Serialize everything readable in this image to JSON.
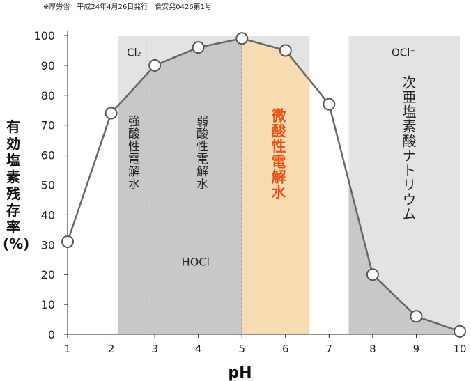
{
  "source_note": "※厚労省　平成24年4月26日発行　食安発0426第1号",
  "chart_data": {
    "type": "line",
    "ylabel_chars": [
      "有",
      "効",
      "塩",
      "素",
      "残",
      "存",
      "率",
      "(%)"
    ],
    "ylabel": "有効塩素残存率(%)",
    "xlabel": "pH",
    "xlim": [
      1,
      10
    ],
    "ylim": [
      0,
      100
    ],
    "x_ticks": [
      "1",
      "2",
      "3",
      "4",
      "5",
      "6",
      "7",
      "8",
      "9",
      "10"
    ],
    "y_ticks": [
      "0",
      "10",
      "20",
      "30",
      "40",
      "50",
      "60",
      "70",
      "80",
      "90",
      "100"
    ],
    "series": [
      {
        "x": [
          1,
          2,
          3,
          4,
          5,
          6,
          7,
          8,
          9,
          10
        ],
        "y": [
          31,
          74,
          90,
          96,
          99,
          95,
          77,
          20,
          6,
          1
        ]
      }
    ],
    "regions": [
      {
        "from": 2.15,
        "to": 6.55,
        "label": "Cl₂",
        "color": "#e3e3e3"
      },
      {
        "from": 7.45,
        "to": 10.0,
        "label": "OCl⁻",
        "color": "#e3e3e3"
      },
      {
        "from": 5.0,
        "to": 6.55,
        "label": "微酸性電解水",
        "color": "#f7dcb3",
        "text_color": "#e8541a"
      }
    ],
    "annotations": [
      {
        "text": "強酸性電解水",
        "x": 2.45,
        "y": 62
      },
      {
        "text": "弱酸性電解水",
        "x": 4.0,
        "y": 62
      },
      {
        "text": "HOCl",
        "x": 4.0,
        "y": 23
      },
      {
        "text": "次亜塩素酸ナトリウム",
        "x": 8.75,
        "y": 68
      }
    ],
    "dashed_lines_x": [
      2.8,
      5.0
    ],
    "colors": {
      "line": "#666666",
      "fill_under": "#c8c8c8",
      "region": "#e3e3e3",
      "orange_region": "#f7dcb3",
      "accent_text": "#e8541a"
    }
  }
}
